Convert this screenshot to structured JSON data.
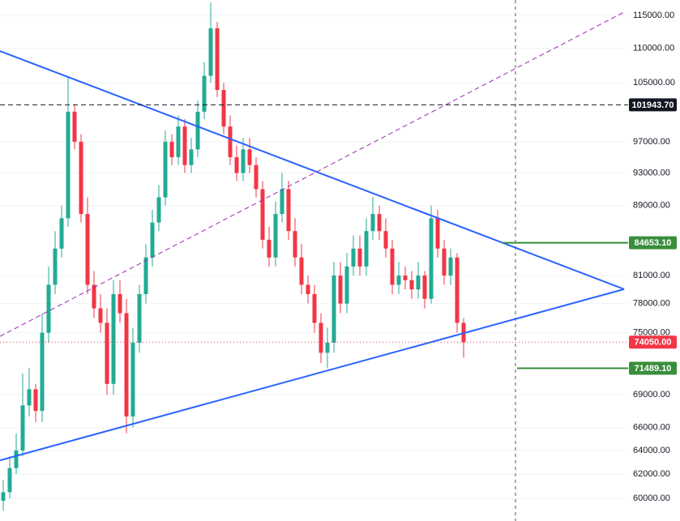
{
  "chart_data": {
    "type": "candlestick",
    "scale": "log",
    "grid": true,
    "up_color": "#22ab94",
    "down_color": "#f23645",
    "xlim": [
      -0.5,
      96.375
    ],
    "ylim": [
      58200,
      117400
    ],
    "yticks": [
      {
        "value": 115000,
        "label": "115000.00"
      },
      {
        "value": 110000,
        "label": "110000.00"
      },
      {
        "value": 105000,
        "label": "105000.00"
      },
      {
        "value": 97000,
        "label": "97000.00"
      },
      {
        "value": 93000,
        "label": "93000.00"
      },
      {
        "value": 89000,
        "label": "89000.00"
      },
      {
        "value": 81000,
        "label": "81000.00"
      },
      {
        "value": 78000,
        "label": "78000.00"
      },
      {
        "value": 75000,
        "label": "75000.00"
      },
      {
        "value": 69000,
        "label": "69000.00"
      },
      {
        "value": 66000,
        "label": "66000.00"
      },
      {
        "value": 64000,
        "label": "64000.00"
      },
      {
        "value": 62000,
        "label": "62000.00"
      },
      {
        "value": 60000,
        "label": "60000.00"
      }
    ],
    "open": [
      59800,
      60500,
      62500,
      64000,
      68000,
      69500,
      67500,
      75000,
      80000,
      84000,
      87500,
      101000,
      97000,
      88000,
      80000,
      77500,
      76000,
      70000,
      79000,
      77000,
      67000,
      74000,
      79000,
      83000,
      87000,
      90000,
      97000,
      95000,
      99000,
      94000,
      96000,
      101000,
      106000,
      113000,
      104000,
      99000,
      95000,
      93000,
      96000,
      94000,
      91000,
      85000,
      83000,
      88000,
      91000,
      86000,
      83000,
      80000,
      79000,
      76000,
      73000,
      74000,
      81000,
      78000,
      82000,
      84000,
      82000,
      86000,
      88000,
      86000,
      84000,
      80000,
      81000,
      80500,
      79500,
      81000,
      78500,
      87500,
      84000,
      81000,
      83000,
      76000
    ],
    "high": [
      61500,
      63500,
      65500,
      71000,
      71500,
      70000,
      77000,
      82000,
      86000,
      89000,
      106000,
      102000,
      98000,
      90000,
      81500,
      79000,
      77500,
      80500,
      80500,
      78500,
      75500,
      80000,
      84500,
      88500,
      91500,
      98500,
      98000,
      100500,
      100000,
      97500,
      102500,
      108000,
      117000,
      114000,
      105000,
      100500,
      96500,
      97500,
      97500,
      95000,
      92000,
      86500,
      89500,
      93000,
      92000,
      87500,
      84500,
      81000,
      80000,
      77000,
      75500,
      82500,
      82500,
      83500,
      85500,
      85500,
      87500,
      90000,
      89000,
      87500,
      85000,
      82500,
      82000,
      81500,
      82500,
      81500,
      89000,
      88500,
      85000,
      84000,
      83500,
      76500
    ],
    "low": [
      59000,
      60000,
      62000,
      63500,
      67000,
      66500,
      66500,
      74000,
      79000,
      83000,
      86500,
      96000,
      87000,
      79000,
      76500,
      75000,
      69000,
      69000,
      76000,
      65500,
      66000,
      73000,
      78000,
      82000,
      86000,
      89000,
      94000,
      94000,
      93000,
      93000,
      95000,
      100000,
      105000,
      103000,
      98000,
      94000,
      92000,
      92000,
      93000,
      90000,
      84000,
      82000,
      82000,
      87000,
      85000,
      82000,
      79000,
      78000,
      75000,
      72000,
      71500,
      73000,
      77000,
      77000,
      81000,
      81000,
      81000,
      85000,
      85000,
      83000,
      79000,
      79000,
      79500,
      78500,
      78500,
      77500,
      78000,
      83000,
      80000,
      80000,
      75000,
      72500
    ],
    "close": [
      60500,
      62500,
      64000,
      68000,
      69500,
      67500,
      75000,
      80000,
      84000,
      87500,
      101000,
      97000,
      88000,
      80000,
      77500,
      76000,
      70000,
      79000,
      77000,
      67000,
      74000,
      79000,
      83000,
      87000,
      90000,
      97000,
      95000,
      99000,
      94000,
      96000,
      101000,
      106000,
      113000,
      104000,
      99000,
      95000,
      93000,
      96000,
      94000,
      91000,
      85000,
      83000,
      88000,
      91000,
      86000,
      83000,
      80000,
      79000,
      76000,
      73000,
      74000,
      81000,
      78000,
      82000,
      84000,
      82000,
      86000,
      88000,
      86000,
      84000,
      80000,
      81000,
      80500,
      79500,
      81000,
      78500,
      87500,
      84000,
      81000,
      83000,
      76000,
      74050
    ],
    "lines": [
      {
        "x": [
          -0.5,
          95.75
        ],
        "y": [
          109600,
          79530
        ],
        "color": "#2962ff",
        "style": "solid"
      },
      {
        "x": [
          -0.5,
          95.75
        ],
        "y": [
          63150,
          79530
        ],
        "color": "#2962ff",
        "style": "solid"
      },
      {
        "x": [
          -0.5,
          95.75
        ],
        "y": [
          74640,
          115500
        ],
        "color": "#9c27b0",
        "style": "dashed"
      }
    ],
    "vlines": [
      79
    ],
    "price_markers": [
      {
        "value": 101943.7,
        "label": "101943.70",
        "color": "#131722",
        "line": "dashed",
        "from": -0.5
      },
      {
        "value": 84653.1,
        "label": "84653.10",
        "color": "#388e3c",
        "line": "solid",
        "from": 77
      },
      {
        "value": 74050,
        "label": "74050.00",
        "color": "#f23645",
        "line": "dotted",
        "from": -0.5
      },
      {
        "value": 71489.1,
        "label": "71489.10",
        "color": "#388e3c",
        "line": "solid",
        "from": 79.25
      }
    ]
  }
}
